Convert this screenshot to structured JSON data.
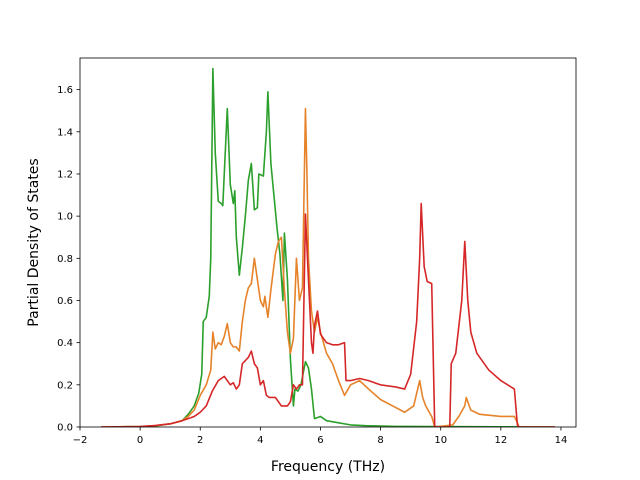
{
  "chart_data": {
    "type": "line",
    "title": "",
    "xlabel": "Frequency (THz)",
    "ylabel": "Partial Density of States",
    "xlim": [
      -2,
      14.5
    ],
    "ylim": [
      0,
      1.75
    ],
    "xticks": [
      -2,
      0,
      2,
      4,
      6,
      8,
      10,
      12,
      14
    ],
    "yticks": [
      0.0,
      0.2,
      0.4,
      0.6,
      0.8,
      1.0,
      1.2,
      1.4,
      1.6
    ],
    "xtick_labels": [
      "−2",
      "0",
      "2",
      "4",
      "6",
      "8",
      "10",
      "12",
      "14"
    ],
    "ytick_labels": [
      "0.0",
      "0.2",
      "0.4",
      "0.6",
      "0.8",
      "1.0",
      "1.2",
      "1.4",
      "1.6"
    ],
    "grid": false,
    "legend": "none",
    "series": [
      {
        "color": "#2ca02c",
        "points": [
          [
            -1.3,
            0
          ],
          [
            0,
            0.002
          ],
          [
            0.5,
            0.005
          ],
          [
            1,
            0.015
          ],
          [
            1.4,
            0.03
          ],
          [
            1.6,
            0.06
          ],
          [
            1.8,
            0.1
          ],
          [
            1.95,
            0.16
          ],
          [
            2.05,
            0.25
          ],
          [
            2.1,
            0.5
          ],
          [
            2.2,
            0.52
          ],
          [
            2.3,
            0.62
          ],
          [
            2.35,
            0.8
          ],
          [
            2.42,
            1.7
          ],
          [
            2.5,
            1.3
          ],
          [
            2.6,
            1.07
          ],
          [
            2.7,
            1.06
          ],
          [
            2.75,
            1.05
          ],
          [
            2.9,
            1.51
          ],
          [
            3.0,
            1.15
          ],
          [
            3.1,
            1.06
          ],
          [
            3.15,
            1.12
          ],
          [
            3.2,
            0.9
          ],
          [
            3.3,
            0.72
          ],
          [
            3.4,
            0.85
          ],
          [
            3.5,
            1.0
          ],
          [
            3.6,
            1.17
          ],
          [
            3.7,
            1.25
          ],
          [
            3.8,
            1.03
          ],
          [
            3.9,
            1.04
          ],
          [
            3.95,
            1.2
          ],
          [
            4.1,
            1.19
          ],
          [
            4.2,
            1.4
          ],
          [
            4.25,
            1.59
          ],
          [
            4.35,
            1.25
          ],
          [
            4.45,
            1.1
          ],
          [
            4.55,
            0.95
          ],
          [
            4.65,
            0.82
          ],
          [
            4.75,
            0.6
          ],
          [
            4.8,
            0.92
          ],
          [
            4.9,
            0.7
          ],
          [
            5.0,
            0.32
          ],
          [
            5.1,
            0.1
          ],
          [
            5.15,
            0.18
          ],
          [
            5.25,
            0.17
          ],
          [
            5.35,
            0.2
          ],
          [
            5.5,
            0.31
          ],
          [
            5.6,
            0.28
          ],
          [
            5.7,
            0.18
          ],
          [
            5.8,
            0.04
          ],
          [
            6.0,
            0.05
          ],
          [
            6.2,
            0.03
          ],
          [
            6.6,
            0.02
          ],
          [
            7.0,
            0.01
          ],
          [
            7.5,
            0.006
          ],
          [
            8.5,
            0.003
          ],
          [
            10.0,
            0.002
          ],
          [
            12.0,
            0.001
          ],
          [
            13.8,
            0
          ]
        ]
      },
      {
        "color": "#e6832a",
        "points": [
          [
            -1.3,
            0
          ],
          [
            0,
            0.002
          ],
          [
            0.5,
            0.007
          ],
          [
            1,
            0.015
          ],
          [
            1.4,
            0.03
          ],
          [
            1.6,
            0.05
          ],
          [
            1.8,
            0.08
          ],
          [
            2.0,
            0.15
          ],
          [
            2.2,
            0.2
          ],
          [
            2.35,
            0.27
          ],
          [
            2.42,
            0.45
          ],
          [
            2.5,
            0.37
          ],
          [
            2.6,
            0.4
          ],
          [
            2.7,
            0.39
          ],
          [
            2.8,
            0.43
          ],
          [
            2.9,
            0.49
          ],
          [
            3.0,
            0.4
          ],
          [
            3.1,
            0.38
          ],
          [
            3.2,
            0.38
          ],
          [
            3.3,
            0.36
          ],
          [
            3.4,
            0.5
          ],
          [
            3.5,
            0.6
          ],
          [
            3.6,
            0.66
          ],
          [
            3.7,
            0.68
          ],
          [
            3.8,
            0.8
          ],
          [
            3.9,
            0.7
          ],
          [
            4.0,
            0.6
          ],
          [
            4.1,
            0.57
          ],
          [
            4.15,
            0.62
          ],
          [
            4.25,
            0.52
          ],
          [
            4.35,
            0.65
          ],
          [
            4.5,
            0.82
          ],
          [
            4.6,
            0.88
          ],
          [
            4.7,
            0.9
          ],
          [
            4.8,
            0.65
          ],
          [
            4.9,
            0.45
          ],
          [
            5.0,
            0.35
          ],
          [
            5.1,
            0.42
          ],
          [
            5.2,
            0.8
          ],
          [
            5.3,
            0.6
          ],
          [
            5.4,
            0.66
          ],
          [
            5.5,
            1.51
          ],
          [
            5.55,
            1.2
          ],
          [
            5.6,
            0.8
          ],
          [
            5.7,
            0.55
          ],
          [
            5.8,
            0.45
          ],
          [
            5.9,
            0.52
          ],
          [
            6.0,
            0.45
          ],
          [
            6.1,
            0.4
          ],
          [
            6.2,
            0.35
          ],
          [
            6.4,
            0.3
          ],
          [
            6.6,
            0.22
          ],
          [
            6.8,
            0.15
          ],
          [
            7.0,
            0.2
          ],
          [
            7.3,
            0.22
          ],
          [
            7.6,
            0.18
          ],
          [
            8.0,
            0.13
          ],
          [
            8.4,
            0.1
          ],
          [
            8.8,
            0.07
          ],
          [
            9.1,
            0.1
          ],
          [
            9.3,
            0.22
          ],
          [
            9.4,
            0.14
          ],
          [
            9.5,
            0.1
          ],
          [
            9.7,
            0.05
          ],
          [
            9.8,
            0
          ],
          [
            10.4,
            0.01
          ],
          [
            10.6,
            0.05
          ],
          [
            10.8,
            0.1
          ],
          [
            10.85,
            0.14
          ],
          [
            11.0,
            0.08
          ],
          [
            11.3,
            0.06
          ],
          [
            12.0,
            0.05
          ],
          [
            12.45,
            0.05
          ],
          [
            12.55,
            0.02
          ],
          [
            12.6,
            0
          ],
          [
            13.8,
            0
          ]
        ]
      },
      {
        "color": "#d62728",
        "points": [
          [
            -1.3,
            0
          ],
          [
            0,
            0.002
          ],
          [
            0.5,
            0.007
          ],
          [
            1,
            0.015
          ],
          [
            1.4,
            0.03
          ],
          [
            1.6,
            0.04
          ],
          [
            1.8,
            0.05
          ],
          [
            2.0,
            0.07
          ],
          [
            2.2,
            0.1
          ],
          [
            2.4,
            0.17
          ],
          [
            2.6,
            0.22
          ],
          [
            2.8,
            0.24
          ],
          [
            3.0,
            0.2
          ],
          [
            3.1,
            0.21
          ],
          [
            3.2,
            0.18
          ],
          [
            3.3,
            0.2
          ],
          [
            3.4,
            0.3
          ],
          [
            3.6,
            0.33
          ],
          [
            3.7,
            0.36
          ],
          [
            3.8,
            0.3
          ],
          [
            3.9,
            0.28
          ],
          [
            4.0,
            0.2
          ],
          [
            4.1,
            0.22
          ],
          [
            4.2,
            0.15
          ],
          [
            4.3,
            0.14
          ],
          [
            4.5,
            0.14
          ],
          [
            4.7,
            0.1
          ],
          [
            4.9,
            0.1
          ],
          [
            5.0,
            0.12
          ],
          [
            5.1,
            0.2
          ],
          [
            5.2,
            0.18
          ],
          [
            5.3,
            0.2
          ],
          [
            5.4,
            0.2
          ],
          [
            5.5,
            1.01
          ],
          [
            5.6,
            0.7
          ],
          [
            5.7,
            0.4
          ],
          [
            5.75,
            0.35
          ],
          [
            5.8,
            0.48
          ],
          [
            5.9,
            0.55
          ],
          [
            6.0,
            0.44
          ],
          [
            6.2,
            0.4
          ],
          [
            6.4,
            0.39
          ],
          [
            6.6,
            0.39
          ],
          [
            6.8,
            0.4
          ],
          [
            6.85,
            0.22
          ],
          [
            7.0,
            0.22
          ],
          [
            7.3,
            0.23
          ],
          [
            7.6,
            0.22
          ],
          [
            8.0,
            0.2
          ],
          [
            8.5,
            0.19
          ],
          [
            8.8,
            0.18
          ],
          [
            9.0,
            0.25
          ],
          [
            9.2,
            0.5
          ],
          [
            9.3,
            0.8
          ],
          [
            9.35,
            1.06
          ],
          [
            9.45,
            0.76
          ],
          [
            9.55,
            0.69
          ],
          [
            9.7,
            0.68
          ],
          [
            9.8,
            0
          ],
          [
            10.3,
            0
          ],
          [
            10.35,
            0.3
          ],
          [
            10.5,
            0.35
          ],
          [
            10.7,
            0.6
          ],
          [
            10.8,
            0.88
          ],
          [
            10.9,
            0.6
          ],
          [
            11.0,
            0.45
          ],
          [
            11.2,
            0.35
          ],
          [
            11.6,
            0.27
          ],
          [
            12.0,
            0.22
          ],
          [
            12.45,
            0.18
          ],
          [
            12.55,
            0.01
          ],
          [
            12.6,
            0
          ],
          [
            13.8,
            0
          ]
        ]
      }
    ]
  }
}
